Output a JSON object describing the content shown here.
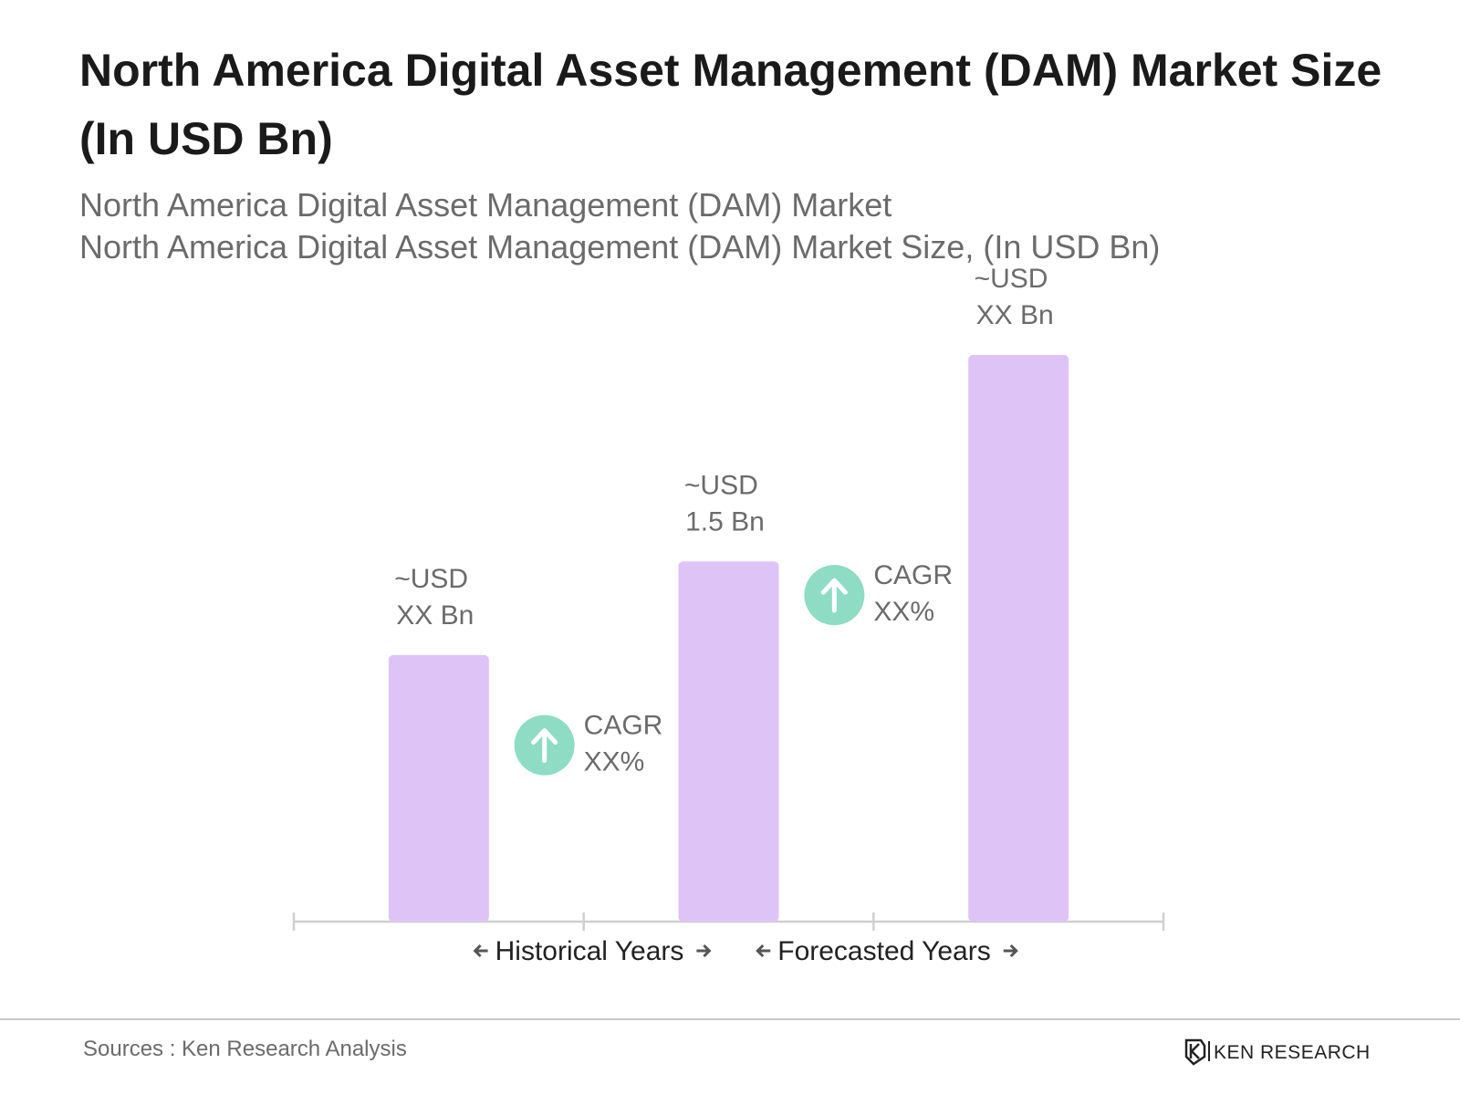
{
  "chart_data": {
    "type": "bar",
    "title": "North America Digital Asset Management (DAM) Market Size (In USD Bn)",
    "subtitle": [
      "North America Digital Asset Management (DAM) Market",
      "North America Digital Asset Management (DAM) Market Size, (In USD Bn)"
    ],
    "categories": [
      null,
      null,
      null
    ],
    "values": [
      1.11,
      1.5,
      2.36
    ],
    "value_labels": [
      "~USD XX Bn",
      "~USD 1.5 Bn",
      "~USD XX Bn"
    ],
    "color": "#dec3f6",
    "annotations": [
      {
        "lines": [
          "CAGR",
          "XX%"
        ]
      },
      {
        "lines": [
          "CAGR",
          "XX%"
        ]
      }
    ],
    "annotation_color": "#8edcc3",
    "periods": [
      "Historical Years",
      "Forecasted Years"
    ],
    "source": "Sources : Ken Research Analysis",
    "brand": "KEN RESEARCH"
  }
}
